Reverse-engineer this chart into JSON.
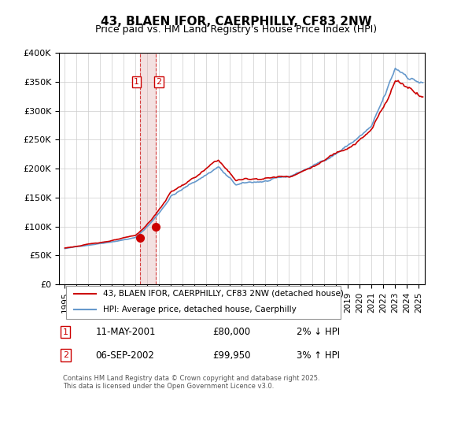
{
  "title": "43, BLAEN IFOR, CAERPHILLY, CF83 2NW",
  "subtitle": "Price paid vs. HM Land Registry's House Price Index (HPI)",
  "legend_label_red": "43, BLAEN IFOR, CAERPHILLY, CF83 2NW (detached house)",
  "legend_label_blue": "HPI: Average price, detached house, Caerphilly",
  "footer": "Contains HM Land Registry data © Crown copyright and database right 2025.\nThis data is licensed under the Open Government Licence v3.0.",
  "transaction1_label": "1",
  "transaction1_date": "11-MAY-2001",
  "transaction1_price": "£80,000",
  "transaction1_hpi": "2% ↓ HPI",
  "transaction2_label": "2",
  "transaction2_date": "06-SEP-2002",
  "transaction2_price": "£99,950",
  "transaction2_hpi": "3% ↑ HPI",
  "color_red": "#cc0000",
  "color_blue": "#6699cc",
  "color_shaded": "#ddaaaa",
  "transaction1_x": 2001.36,
  "transaction2_x": 2002.68,
  "transaction1_y": 80000,
  "transaction2_y": 99950,
  "ylim": [
    0,
    400000
  ],
  "xlim": [
    1994.5,
    2025.5
  ],
  "yticks": [
    0,
    50000,
    100000,
    150000,
    200000,
    250000,
    300000,
    350000,
    400000
  ],
  "xticks": [
    1995,
    1996,
    1997,
    1998,
    1999,
    2000,
    2001,
    2002,
    2003,
    2004,
    2005,
    2006,
    2007,
    2008,
    2009,
    2010,
    2011,
    2012,
    2013,
    2014,
    2015,
    2016,
    2017,
    2018,
    2019,
    2020,
    2021,
    2022,
    2023,
    2024,
    2025
  ]
}
